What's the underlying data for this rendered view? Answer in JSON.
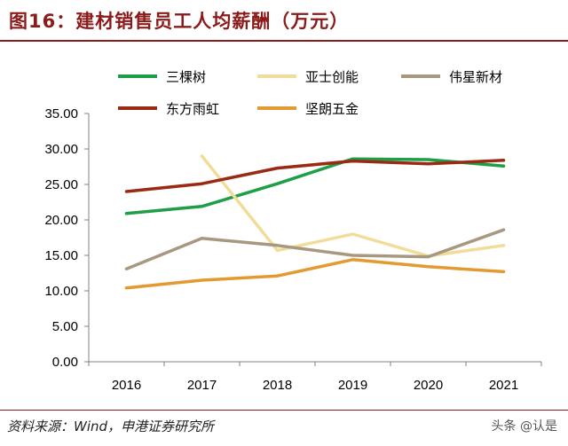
{
  "header": {
    "title": "图16：建材销售员工人均薪酬（万元）"
  },
  "footer": {
    "source": "资料来源：Wind，申港证券研究所",
    "watermark": "头条 @认是"
  },
  "chart_data": {
    "type": "line",
    "title": "图16：建材销售员工人均薪酬（万元）",
    "xlabel": "",
    "ylabel": "",
    "categories": [
      "2016",
      "2017",
      "2018",
      "2019",
      "2020",
      "2021"
    ],
    "ylim": [
      0,
      35
    ],
    "yticks": [
      "0.00",
      "5.00",
      "10.00",
      "15.00",
      "20.00",
      "25.00",
      "30.00",
      "35.00"
    ],
    "grid": false,
    "legend_position": "top",
    "series": [
      {
        "name": "三棵树",
        "color": "#1e9e46",
        "values": [
          20.9,
          21.9,
          25.1,
          28.6,
          28.5,
          27.6
        ]
      },
      {
        "name": "亚士创能",
        "color": "#f2dc9a",
        "values": [
          null,
          29.0,
          15.7,
          18.0,
          14.9,
          16.4
        ]
      },
      {
        "name": "伟星新材",
        "color": "#a89880",
        "values": [
          13.1,
          17.4,
          16.4,
          15.0,
          14.8,
          18.6
        ]
      },
      {
        "name": "东方雨虹",
        "color": "#9a2a14",
        "values": [
          24.0,
          25.1,
          27.3,
          28.3,
          27.9,
          28.4
        ]
      },
      {
        "name": "坚朗五金",
        "color": "#e39a32",
        "values": [
          10.4,
          11.5,
          12.1,
          14.4,
          13.4,
          12.7
        ]
      }
    ]
  }
}
